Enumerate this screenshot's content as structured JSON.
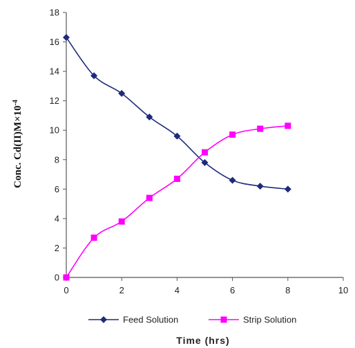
{
  "chart_data": {
    "type": "line",
    "ylabel": "Conc.  Cd(II)M×10",
    "ylabel_exponent": "-4",
    "xlabel": "Time (hrs)",
    "xlim": [
      0,
      10
    ],
    "ylim": [
      0,
      18
    ],
    "x_ticks": [
      0,
      2,
      4,
      6,
      8,
      10
    ],
    "y_ticks": [
      0,
      2,
      4,
      6,
      8,
      10,
      12,
      14,
      16,
      18
    ],
    "grid": false,
    "legend_position": "bottom",
    "series": [
      {
        "name": "Feed Solution",
        "color": "#1f2a7a",
        "marker": "diamond",
        "x": [
          0,
          1,
          2,
          3,
          4,
          5,
          6,
          7,
          8
        ],
        "y": [
          16.3,
          13.7,
          12.5,
          10.9,
          9.6,
          7.8,
          6.6,
          6.2,
          6.0
        ]
      },
      {
        "name": "Strip Solution",
        "color": "#ff00ff",
        "marker": "square",
        "x": [
          0,
          1,
          2,
          3,
          4,
          5,
          6,
          7,
          8
        ],
        "y": [
          0.0,
          2.7,
          3.8,
          5.4,
          6.7,
          8.5,
          9.7,
          10.1,
          10.3
        ]
      }
    ]
  }
}
